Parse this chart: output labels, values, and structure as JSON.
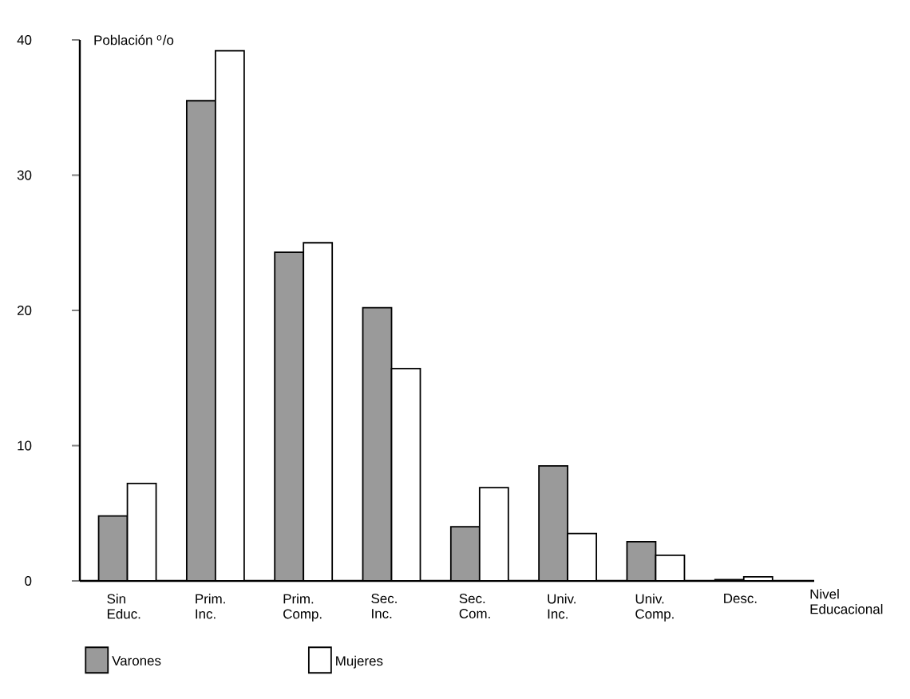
{
  "chart_data": {
    "type": "bar",
    "ylabel": "Población $^{o}$/o",
    "xlabel": "Nivel Educacional",
    "categories": [
      "Sin Educ.",
      "Prim. Inc.",
      "Prim. Comp.",
      "Sec. Inc.",
      "Sec. Com.",
      "Univ. Inc.",
      "Univ. Comp.",
      "Desc."
    ],
    "series": [
      {
        "name": "Varones",
        "color": "#9a9a9a",
        "values": [
          4.8,
          35.5,
          24.3,
          20.2,
          4.0,
          8.5,
          2.9,
          0.1
        ]
      },
      {
        "name": "Mujeres",
        "color": "#ffffff",
        "values": [
          7.2,
          39.2,
          25.0,
          15.7,
          6.9,
          3.5,
          1.9,
          0.3
        ]
      }
    ],
    "ylim": [
      0,
      40
    ],
    "yticks": [
      0,
      10,
      20,
      30,
      40
    ],
    "legend": "bottom left"
  }
}
